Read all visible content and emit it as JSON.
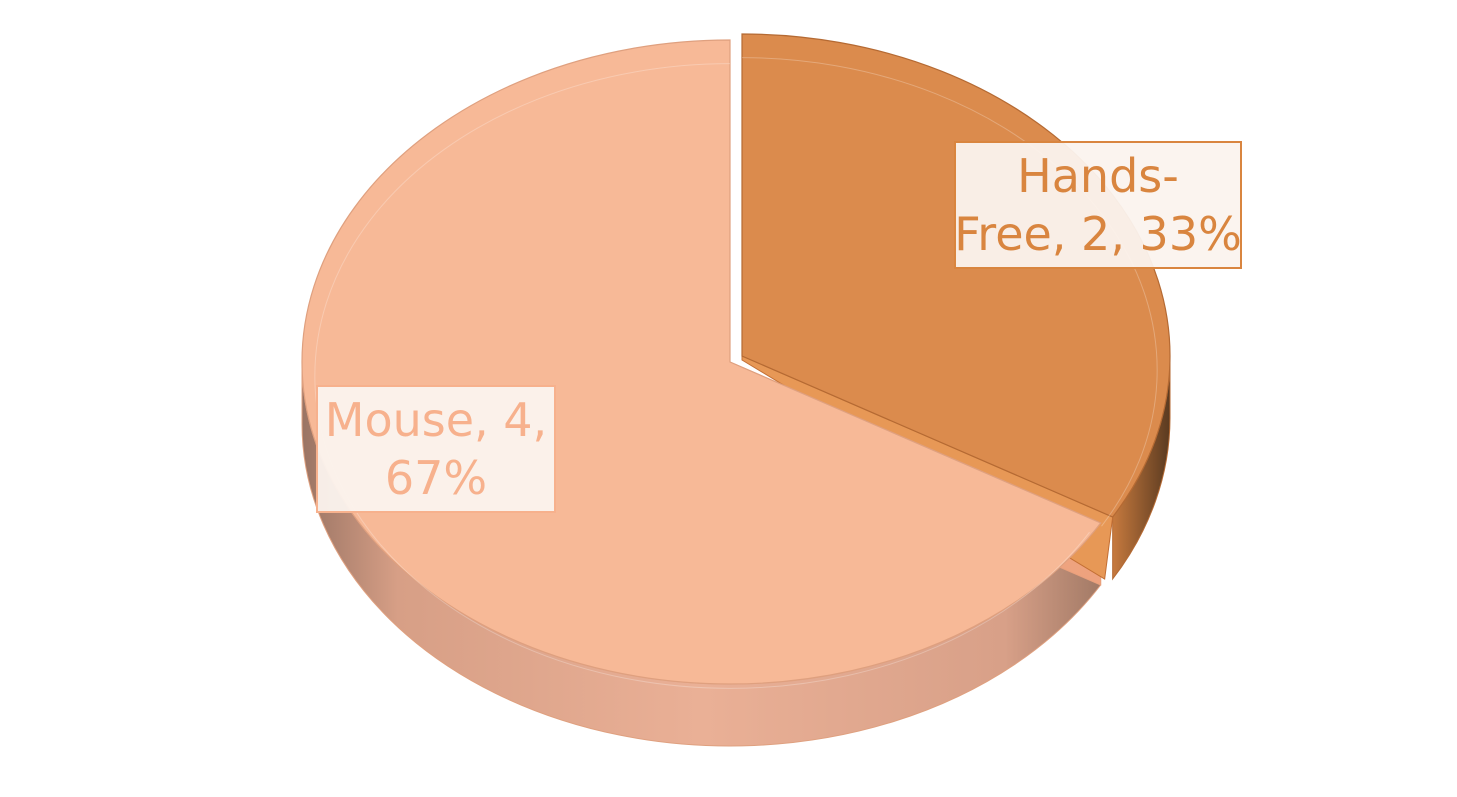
{
  "chart_data": {
    "type": "pie",
    "style": "3d-exploded",
    "title": "",
    "legend": "none",
    "slices": [
      {
        "category": "Hands-Free",
        "value": 2,
        "percent": "33%",
        "color": "#db8b4d",
        "side_color": "#b56a33",
        "label_lines": [
          "Hands-",
          "Free, 2, 33%"
        ]
      },
      {
        "category": "Mouse",
        "value": 4,
        "percent": "67%",
        "color": "#f7b997",
        "side_color": "#dfa07f",
        "label_lines": [
          "Mouse, 4,",
          "67%"
        ]
      }
    ]
  },
  "colors": {
    "background": "#ffffff",
    "label_box_fill": "#fbf3ee"
  }
}
